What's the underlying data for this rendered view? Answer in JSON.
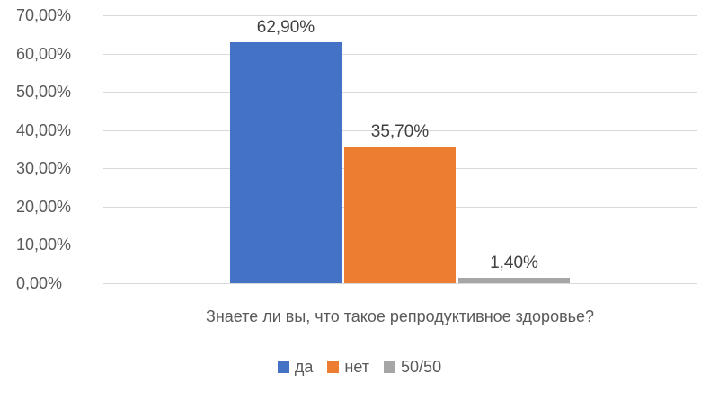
{
  "chart_data": {
    "type": "bar",
    "title": "",
    "xlabel": "Знаете ли вы, что такое репродуктивное здоровье?",
    "ylabel": "",
    "ylim": [
      0,
      70
    ],
    "ytick_step": 10,
    "ytick_labels": [
      "0,00%",
      "10,00%",
      "20,00%",
      "30,00%",
      "40,00%",
      "50,00%",
      "60,00%",
      "70,00%"
    ],
    "grid": true,
    "legend_position": "bottom",
    "categories": [
      "Знаете ли вы, что такое репродуктивное здоровье?"
    ],
    "series": [
      {
        "name": "да",
        "values": [
          62.9
        ],
        "data_label": "62,90%",
        "color": "#4472c4"
      },
      {
        "name": "нет",
        "values": [
          35.7
        ],
        "data_label": "35,70%",
        "color": "#ed7d31"
      },
      {
        "name": "50/50",
        "values": [
          1.4
        ],
        "data_label": "1,40%",
        "color": "#a6a6a6"
      }
    ],
    "colors": {
      "gridline": "#d9d9d9",
      "tick_text": "#595959",
      "data_label_text": "#404040"
    }
  }
}
